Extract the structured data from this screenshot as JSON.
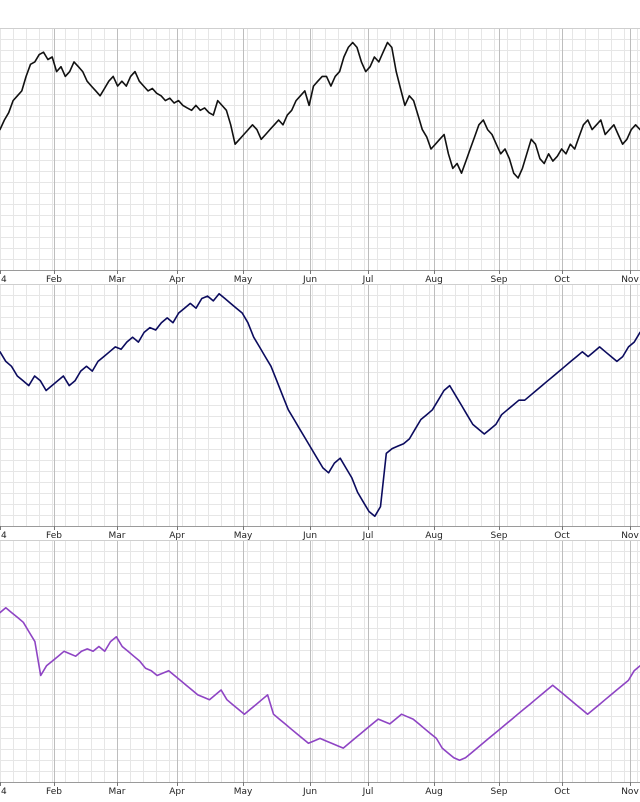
{
  "chart_data": [
    {
      "type": "line",
      "title": "",
      "color": "#111111",
      "months": [
        "4",
        "Feb",
        "Mar",
        "Apr",
        "May",
        "Jun",
        "Jul",
        "Aug",
        "Sep",
        "Oct",
        "Nov"
      ],
      "grid": true,
      "ylim": [
        0,
        100
      ],
      "series": [
        {
          "values": [
            58,
            62,
            65,
            70,
            72,
            74,
            80,
            85,
            86,
            89,
            90,
            87,
            88,
            82,
            84,
            80,
            82,
            86,
            84,
            82,
            78,
            76,
            74,
            72,
            75,
            78,
            80,
            76,
            78,
            76,
            80,
            82,
            78,
            76,
            74,
            75,
            73,
            72,
            70,
            71,
            69,
            70,
            68,
            67,
            66,
            68,
            66,
            67,
            65,
            64,
            70,
            68,
            66,
            60,
            52,
            54,
            56,
            58,
            60,
            58,
            54,
            56,
            58,
            60,
            62,
            60,
            64,
            66,
            70,
            72,
            74,
            68,
            76,
            78,
            80,
            80,
            76,
            80,
            82,
            88,
            92,
            94,
            92,
            86,
            82,
            84,
            88,
            86,
            90,
            94,
            92,
            82,
            75,
            68,
            72,
            70,
            64,
            58,
            55,
            50,
            52,
            54,
            56,
            48,
            42,
            44,
            40,
            45,
            50,
            55,
            60,
            62,
            58,
            56,
            52,
            48,
            50,
            46,
            40,
            38,
            42,
            48,
            54,
            52,
            46,
            44,
            48,
            45,
            47,
            50,
            48,
            52,
            50,
            55,
            60,
            62,
            58,
            60,
            62,
            56,
            58,
            60,
            56,
            52,
            54,
            58,
            60,
            58
          ]
        }
      ]
    },
    {
      "type": "line",
      "title": "",
      "color": "#0b0b5e",
      "months": [
        "4",
        "Feb",
        "Mar",
        "Apr",
        "May",
        "Jun",
        "Jul",
        "Aug",
        "Sep",
        "Oct",
        "Nov"
      ],
      "grid": true,
      "ylim": [
        0,
        100
      ],
      "series": [
        {
          "values": [
            72,
            68,
            66,
            62,
            60,
            58,
            62,
            60,
            56,
            58,
            60,
            62,
            58,
            60,
            64,
            66,
            64,
            68,
            70,
            72,
            74,
            73,
            76,
            78,
            76,
            80,
            82,
            81,
            84,
            86,
            84,
            88,
            90,
            92,
            90,
            94,
            95,
            93,
            96,
            94,
            92,
            90,
            88,
            84,
            78,
            74,
            70,
            66,
            60,
            54,
            48,
            44,
            40,
            36,
            32,
            28,
            24,
            22,
            26,
            28,
            24,
            20,
            14,
            10,
            6,
            4,
            8,
            30,
            32,
            33,
            34,
            36,
            40,
            44,
            46,
            48,
            52,
            56,
            58,
            54,
            50,
            46,
            42,
            40,
            38,
            40,
            42,
            46,
            48,
            50,
            52,
            52,
            54,
            56,
            58,
            60,
            62,
            64,
            66,
            68,
            70,
            72,
            70,
            72,
            74,
            72,
            70,
            68,
            70,
            74,
            76,
            80
          ]
        }
      ]
    },
    {
      "type": "line",
      "title": "",
      "color": "#8e44c4",
      "months": [
        "4",
        "Feb",
        "Mar",
        "Apr",
        "May",
        "Jun",
        "Jul",
        "Aug",
        "Sep",
        "Oct",
        "Nov"
      ],
      "grid": true,
      "ylim": [
        0,
        100
      ],
      "series": [
        {
          "values": [
            70,
            72,
            70,
            68,
            66,
            62,
            58,
            44,
            48,
            50,
            52,
            54,
            53,
            52,
            54,
            55,
            54,
            56,
            54,
            58,
            60,
            56,
            54,
            52,
            50,
            47,
            46,
            44,
            45,
            46,
            44,
            42,
            40,
            38,
            36,
            35,
            34,
            36,
            38,
            34,
            32,
            30,
            28,
            30,
            32,
            34,
            36,
            28,
            26,
            24,
            22,
            20,
            18,
            16,
            17,
            18,
            17,
            16,
            15,
            14,
            16,
            18,
            20,
            22,
            24,
            26,
            25,
            24,
            26,
            28,
            27,
            26,
            24,
            22,
            20,
            18,
            14,
            12,
            10,
            9,
            10,
            12,
            14,
            16,
            18,
            20,
            22,
            24,
            26,
            28,
            30,
            32,
            34,
            36,
            38,
            40,
            38,
            36,
            34,
            32,
            30,
            28,
            30,
            32,
            34,
            36,
            38,
            40,
            42,
            46,
            48
          ]
        }
      ]
    }
  ]
}
